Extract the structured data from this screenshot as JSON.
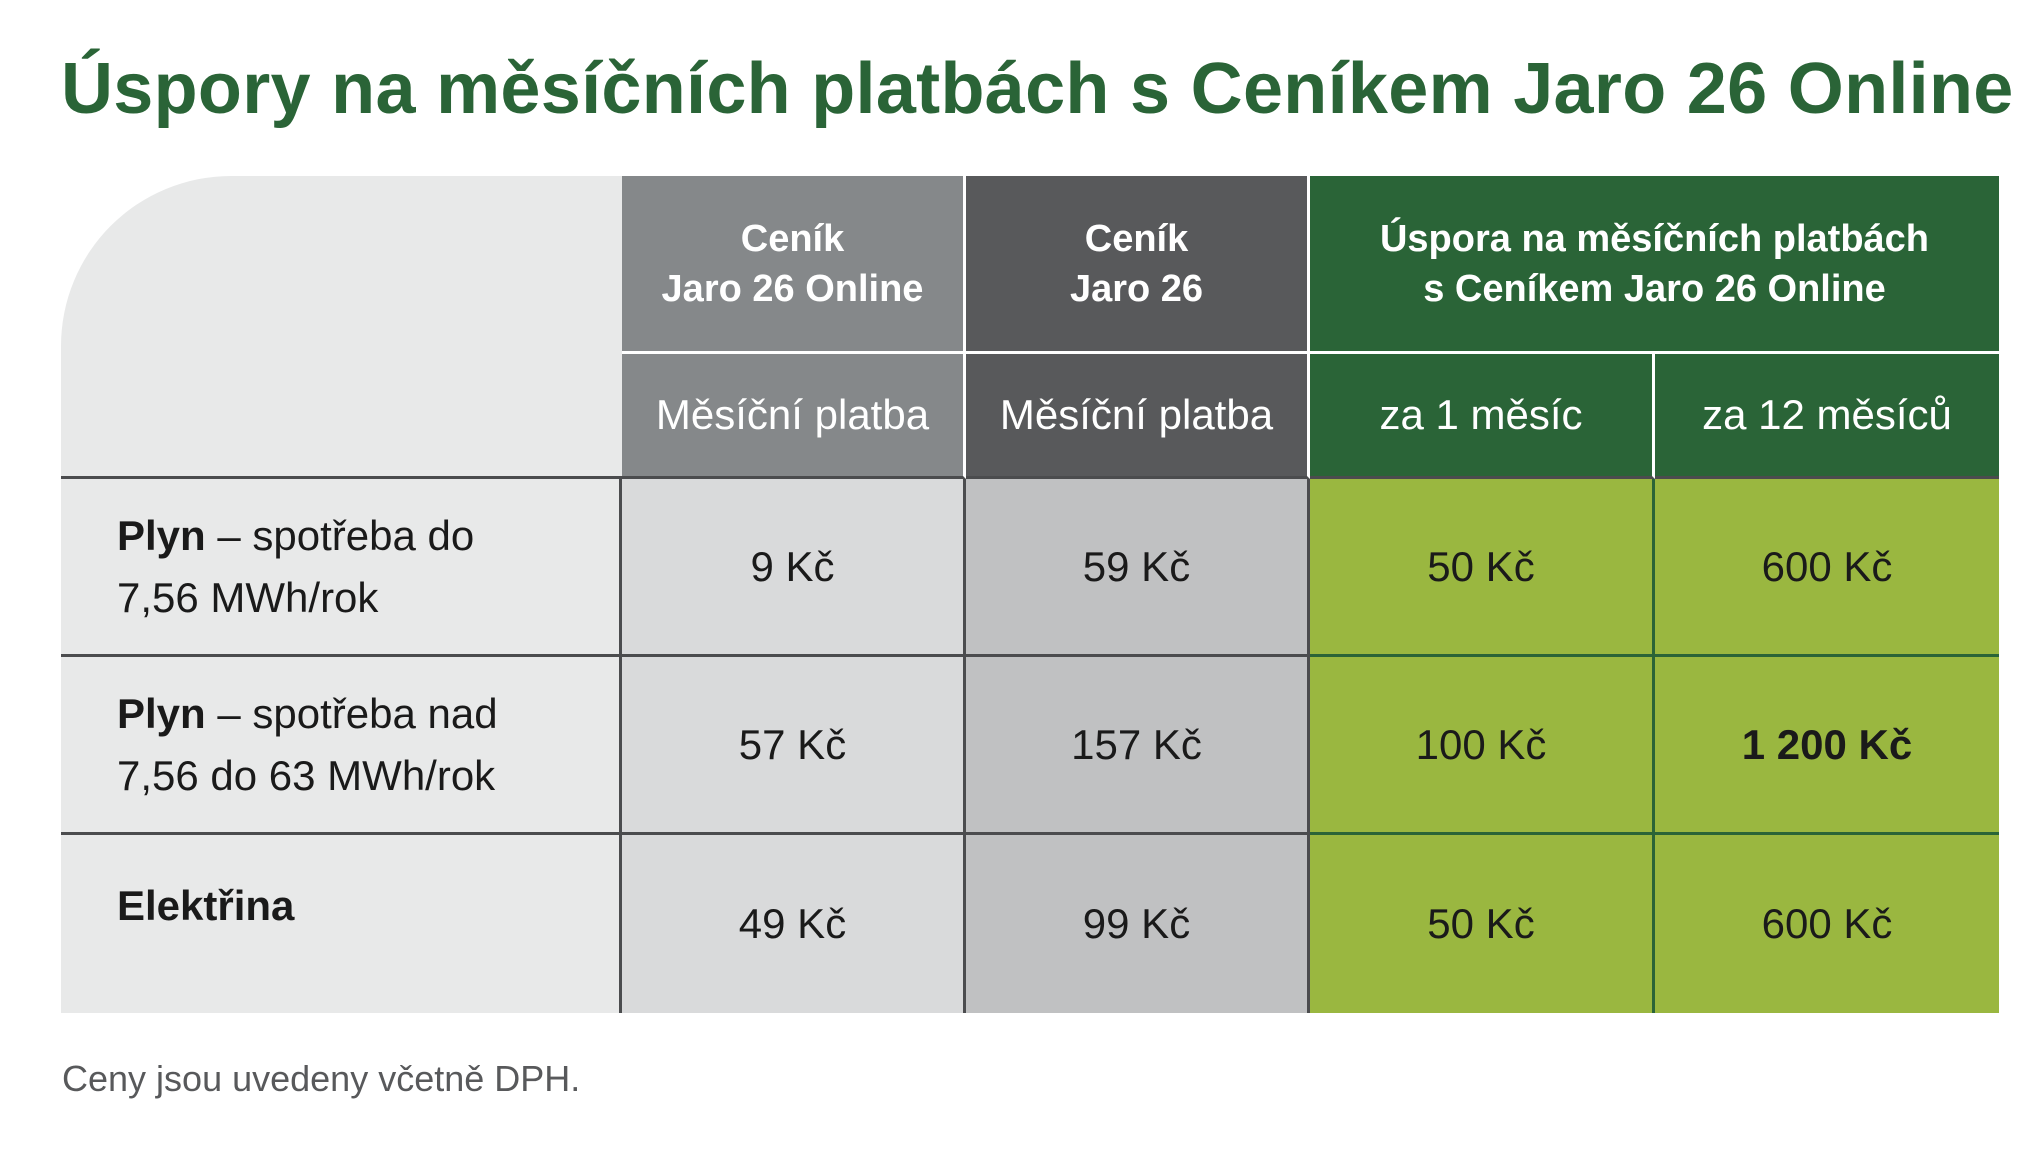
{
  "title": "Úspory na měsíčních platbách s Ceníkem Jaro 26 Online",
  "header": {
    "col_online_line1": "Ceník",
    "col_online_line2": "Jaro 26 Online",
    "col_jaro_line1": "Ceník",
    "col_jaro_line2": "Jaro 26",
    "col_save_line1": "Úspora na měsíčních platbách",
    "col_save_line2": "s Ceníkem Jaro 26 Online",
    "sub_online": "Měsíční platba",
    "sub_jaro": "Měsíční platba",
    "sub_save_1": "za 1 měsíc",
    "sub_save_12": "za 12 měsíců"
  },
  "rows": [
    {
      "label_bold": "Plyn",
      "label_rest_line1": " – spotřeba do",
      "label_line2": "7,56 MWh/rok",
      "online": "9 Kč",
      "jaro": "59 Kč",
      "save_1": "50 Kč",
      "save_12": "600 Kč"
    },
    {
      "label_bold": "Plyn",
      "label_rest_line1": " – spotřeba nad",
      "label_line2": "7,56 do 63 MWh/rok",
      "online": "57 Kč",
      "jaro": "157 Kč",
      "save_1": "100 Kč",
      "save_12": "1 200 Kč"
    },
    {
      "label_bold": "Elektřina",
      "online": "49 Kč",
      "jaro": "99 Kč",
      "save_1": "50 Kč",
      "save_12": "600 Kč"
    }
  ],
  "footnote": "Ceny jsou uvedeny včetně DPH.",
  "colors": {
    "brand_green": "#2a6437",
    "light_green": "#9ab740",
    "gray_online": "#85888a",
    "gray_jaro": "#58595b"
  }
}
